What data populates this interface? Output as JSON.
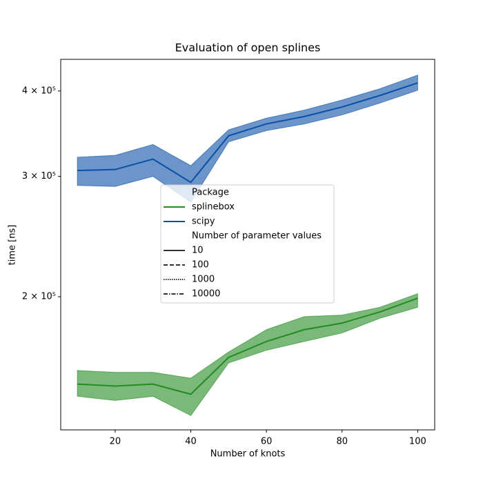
{
  "chart_data": {
    "type": "line",
    "title": "Evaluation of open splines",
    "xlabel": "Number of knots",
    "ylabel": "time [ns]",
    "x": [
      10,
      20,
      30,
      40,
      50,
      60,
      70,
      80,
      90,
      100
    ],
    "series": [
      {
        "name": "splinebox",
        "color": "#228b22",
        "values": [
          149000,
          148000,
          149000,
          144000,
          163000,
          172000,
          179000,
          183000,
          190000,
          199000
        ],
        "upper": [
          156000,
          155000,
          155000,
          152000,
          166000,
          179000,
          187000,
          188000,
          193000,
          202000
        ],
        "lower": [
          143000,
          141000,
          143000,
          134000,
          160000,
          167000,
          172000,
          177000,
          186000,
          193000
        ]
      },
      {
        "name": "scipy",
        "color": "#0a4fa5",
        "values": [
          306000,
          307000,
          318000,
          294000,
          344000,
          358000,
          367000,
          379000,
          394000,
          411000
        ],
        "upper": [
          320000,
          322000,
          334000,
          311000,
          351000,
          365000,
          375000,
          388000,
          403000,
          422000
        ],
        "lower": [
          291000,
          290000,
          300000,
          275000,
          337000,
          350000,
          358000,
          369000,
          384000,
          401000
        ]
      }
    ],
    "xlim": [
      5.6,
      104.5
    ],
    "xticks": [
      20,
      40,
      60,
      80,
      100
    ],
    "ylim": [
      127700,
      445000
    ],
    "log_y": true,
    "yticks": [
      {
        "value": 200000,
        "label": "2 × 10⁵"
      },
      {
        "value": 300000,
        "label": "3 × 10⁵"
      },
      {
        "value": 400000,
        "label": "4 × 10⁵"
      }
    ],
    "legend_title": "Package",
    "style_legend": {
      "title": "Number of parameter values",
      "entries": [
        {
          "label": "10",
          "dash": "solid"
        },
        {
          "label": "100",
          "dash": "dashed"
        },
        {
          "label": "1000",
          "dash": "dotted"
        },
        {
          "label": "10000",
          "dash": "dashdot"
        }
      ]
    },
    "legend_position": "center"
  }
}
